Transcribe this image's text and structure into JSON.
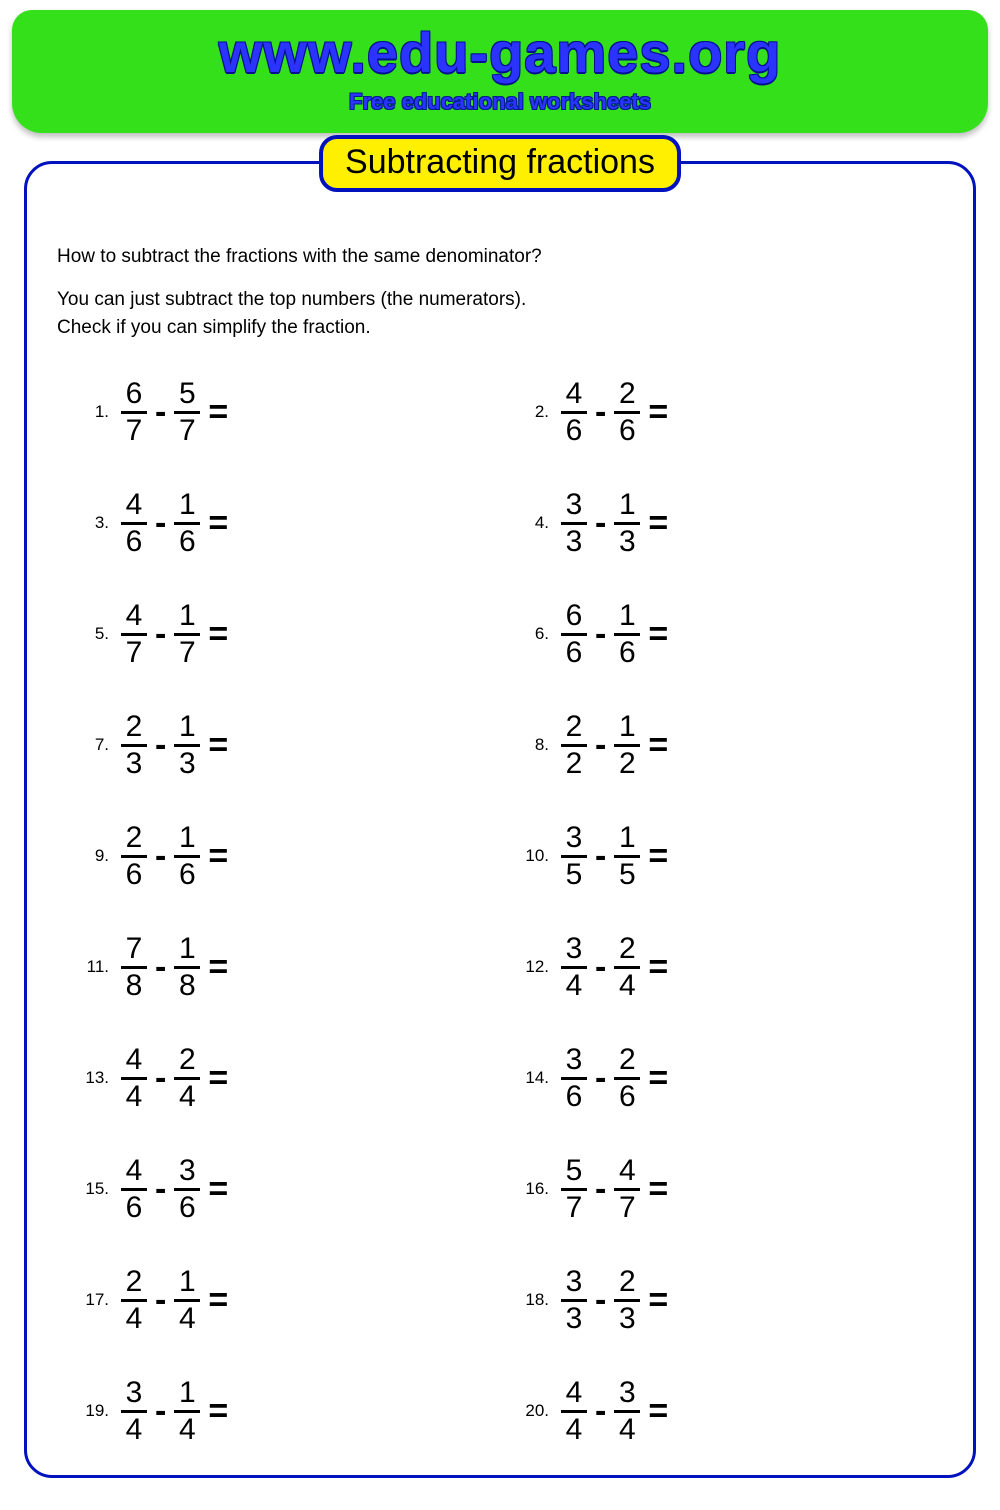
{
  "header": {
    "site_title": "www.edu-games.org",
    "site_sub": "Free educational worksheets",
    "bg_color": "#33e01a",
    "title_color": "#2b34ff"
  },
  "badge": {
    "text": "Subtracting fractions",
    "bg_color": "#ffef00",
    "border_color": "#0012be"
  },
  "instructions": {
    "line1": "How to subtract the fractions with the same denominator?",
    "line2": "You can just subtract the top numbers (the numerators).",
    "line3": "Check if you can simplify the fraction."
  },
  "styling": {
    "problem_number_fontsize": 17,
    "fraction_fontsize": 30,
    "operator_fontsize": 34,
    "text_color": "#000000",
    "sheet_border_color": "#0012be",
    "sheet_border_radius": 28
  },
  "operator_minus": "-",
  "operator_equals": "=",
  "problems": [
    {
      "n": "1.",
      "a_num": "6",
      "a_den": "7",
      "b_num": "5",
      "b_den": "7"
    },
    {
      "n": "2.",
      "a_num": "4",
      "a_den": "6",
      "b_num": "2",
      "b_den": "6"
    },
    {
      "n": "3.",
      "a_num": "4",
      "a_den": "6",
      "b_num": "1",
      "b_den": "6"
    },
    {
      "n": "4.",
      "a_num": "3",
      "a_den": "3",
      "b_num": "1",
      "b_den": "3"
    },
    {
      "n": "5.",
      "a_num": "4",
      "a_den": "7",
      "b_num": "1",
      "b_den": "7"
    },
    {
      "n": "6.",
      "a_num": "6",
      "a_den": "6",
      "b_num": "1",
      "b_den": "6"
    },
    {
      "n": "7.",
      "a_num": "2",
      "a_den": "3",
      "b_num": "1",
      "b_den": "3"
    },
    {
      "n": "8.",
      "a_num": "2",
      "a_den": "2",
      "b_num": "1",
      "b_den": "2"
    },
    {
      "n": "9.",
      "a_num": "2",
      "a_den": "6",
      "b_num": "1",
      "b_den": "6"
    },
    {
      "n": "10.",
      "a_num": "3",
      "a_den": "5",
      "b_num": "1",
      "b_den": "5"
    },
    {
      "n": "11.",
      "a_num": "7",
      "a_den": "8",
      "b_num": "1",
      "b_den": "8"
    },
    {
      "n": "12.",
      "a_num": "3",
      "a_den": "4",
      "b_num": "2",
      "b_den": "4"
    },
    {
      "n": "13.",
      "a_num": "4",
      "a_den": "4",
      "b_num": "2",
      "b_den": "4"
    },
    {
      "n": "14.",
      "a_num": "3",
      "a_den": "6",
      "b_num": "2",
      "b_den": "6"
    },
    {
      "n": "15.",
      "a_num": "4",
      "a_den": "6",
      "b_num": "3",
      "b_den": "6"
    },
    {
      "n": "16.",
      "a_num": "5",
      "a_den": "7",
      "b_num": "4",
      "b_den": "7"
    },
    {
      "n": "17.",
      "a_num": "2",
      "a_den": "4",
      "b_num": "1",
      "b_den": "4"
    },
    {
      "n": "18.",
      "a_num": "3",
      "a_den": "3",
      "b_num": "2",
      "b_den": "3"
    },
    {
      "n": "19.",
      "a_num": "3",
      "a_den": "4",
      "b_num": "1",
      "b_den": "4"
    },
    {
      "n": "20.",
      "a_num": "4",
      "a_den": "4",
      "b_num": "3",
      "b_den": "4"
    }
  ]
}
